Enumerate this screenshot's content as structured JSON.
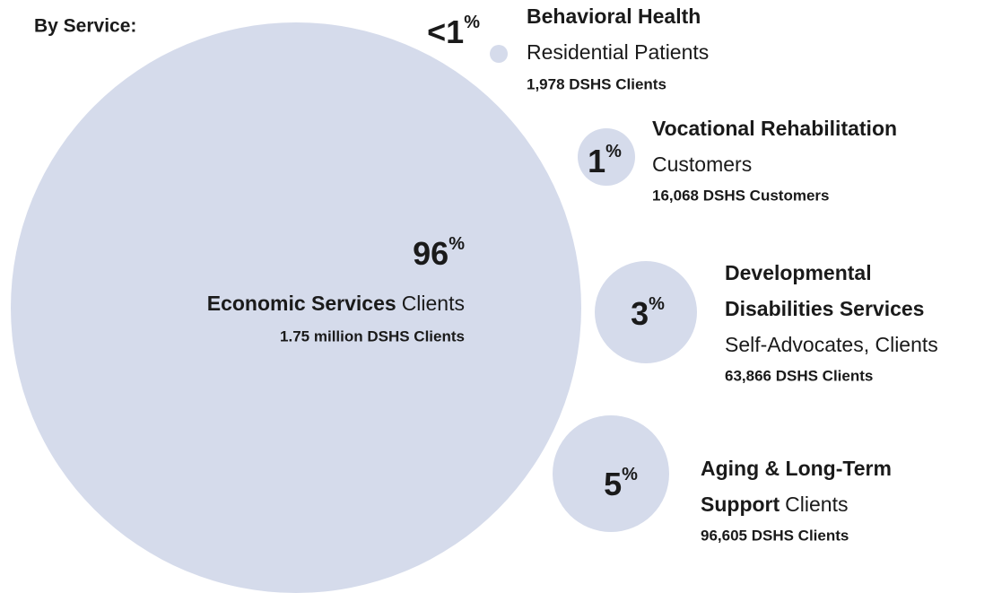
{
  "title": "By Service:",
  "services": [
    {
      "percent": "96",
      "percent_sign": "%",
      "name_lines": [
        "Economic Services"
      ],
      "role": "Clients",
      "count": "1.75 million DSHS Clients"
    },
    {
      "percent": "<1",
      "percent_sign": "%",
      "name_lines": [
        "Behavioral Health"
      ],
      "role": "Residential Patients",
      "count": "1,978 DSHS Clients"
    },
    {
      "percent": "1",
      "percent_sign": "%",
      "name_lines": [
        "Vocational Rehabilitation"
      ],
      "role": "Customers",
      "count": "16,068 DSHS Customers"
    },
    {
      "percent": "3",
      "percent_sign": "%",
      "name_lines": [
        "Developmental",
        "Disabilities Services"
      ],
      "role": "Self-Advocates, Clients",
      "count": "63,866 DSHS Clients"
    },
    {
      "percent": "5",
      "percent_sign": "%",
      "name_lines": [
        "Aging & Long-Term",
        "Support"
      ],
      "role": "Clients",
      "count": "96,605 DSHS Clients"
    }
  ]
}
